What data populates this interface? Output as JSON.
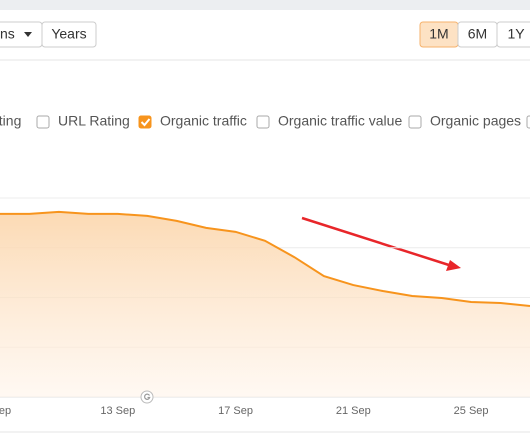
{
  "toolbar": {
    "dropdown": "ns",
    "years": "Years",
    "ranges": [
      "1M",
      "6M",
      "1Y"
    ],
    "active_range": 0
  },
  "metrics": [
    {
      "label": "ating",
      "checked": false
    },
    {
      "label": "URL Rating",
      "checked": false
    },
    {
      "label": "Organic traffic",
      "checked": true
    },
    {
      "label": "Organic traffic value",
      "checked": false
    },
    {
      "label": "Organic pages",
      "checked": false
    }
  ],
  "chart_data": {
    "type": "area",
    "categories": [
      "ep",
      null,
      null,
      null,
      "13 Sep",
      null,
      null,
      null,
      "17 Sep",
      null,
      null,
      null,
      "21 Sep",
      null,
      null,
      null,
      "25 Sep",
      null,
      null
    ],
    "values": [
      3.68,
      3.68,
      3.72,
      3.68,
      3.68,
      3.64,
      3.54,
      3.4,
      3.32,
      3.14,
      2.81,
      2.43,
      2.25,
      2.13,
      2.03,
      1.99,
      1.91,
      1.89,
      1.83
    ],
    "color": "#f7941d",
    "ylim": [
      0,
      4
    ],
    "grid_values": [
      1,
      2,
      3,
      4
    ],
    "grid": true
  }
}
